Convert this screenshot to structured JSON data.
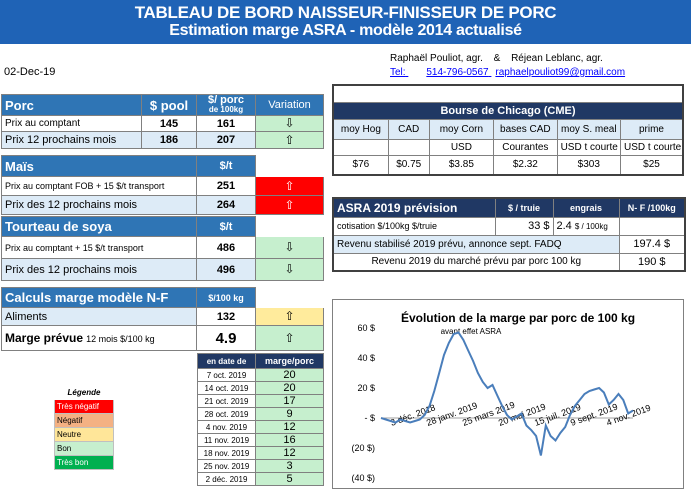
{
  "header": {
    "title": "TABLEAU DE BORD NAISSEUR-FINISSEUR DE PORC",
    "subtitle": "Estimation marge ASRA - modèle 2014 actualisé",
    "authors": "Raphaël Pouliot, agr.",
    "and": "&",
    "author2": "Réjean Leblanc, agr.",
    "date": "02-Dec-19",
    "tel_label": "Tel:",
    "tel_number": "514-796-0567",
    "email": "raphaelpouliot99@gmail.com"
  },
  "porc": {
    "title": "Porc",
    "col_pool": "$ pool",
    "col_porc": "$/ porc",
    "col_porc_sub": "de 100kg",
    "col_variation": "Variation",
    "rows": [
      {
        "label": "Prix au comptant",
        "pool": "145",
        "porc": "161",
        "arrow": "⇩"
      },
      {
        "label": "Prix 12 prochains mois",
        "pool": "186",
        "porc": "207",
        "arrow": "⇧"
      }
    ]
  },
  "mais": {
    "title": "Maïs",
    "unit": "$/t",
    "rows": [
      {
        "label": "Prix au comptant FOB + 15 $/t transport",
        "value": "251",
        "arrow": "⇧"
      },
      {
        "label": "Prix des 12 prochains mois",
        "value": "264",
        "arrow": "⇧"
      }
    ]
  },
  "soya": {
    "title": "Tourteau de soya",
    "unit": "$/t",
    "rows": [
      {
        "label": "Prix au comptant + 15 $/t transport",
        "value": "486",
        "arrow": "⇩"
      },
      {
        "label": "Prix des 12 prochains mois",
        "value": "496",
        "arrow": "⇩"
      }
    ]
  },
  "calculs": {
    "title": "Calculs marge modèle N-F",
    "unit": "$/100 kg",
    "aliments_label": "Aliments",
    "aliments_value": "132",
    "aliments_arrow": "⇧",
    "marge_label": "Marge prévue",
    "marge_sub": "12 mois $/100 kg",
    "marge_value": "4.9",
    "marge_arrow": "⇧"
  },
  "history": {
    "col_date": "en date de",
    "col_marge": "marge/porc",
    "rows": [
      {
        "date": "7 oct. 2019",
        "value": "20"
      },
      {
        "date": "14 oct. 2019",
        "value": "20"
      },
      {
        "date": "21 oct. 2019",
        "value": "17"
      },
      {
        "date": "28 oct. 2019",
        "value": "9"
      },
      {
        "date": "4 nov. 2019",
        "value": "12"
      },
      {
        "date": "11 nov. 2019",
        "value": "16"
      },
      {
        "date": "18 nov. 2019",
        "value": "12"
      },
      {
        "date": "25 nov. 2019",
        "value": "3"
      },
      {
        "date": "2 déc. 2019",
        "value": "5"
      }
    ]
  },
  "legend": {
    "title": "Légende",
    "items": [
      {
        "label": "Très négatif",
        "color": "#ff0000",
        "text": "#ffffff"
      },
      {
        "label": "Négatif",
        "color": "#f4b183",
        "text": "#000000"
      },
      {
        "label": "Neutre",
        "color": "#ffe699",
        "text": "#000000"
      },
      {
        "label": "Bon",
        "color": "#c6efce",
        "text": "#000000"
      },
      {
        "label": "Très bon",
        "color": "#00b050",
        "text": "#ffffff"
      }
    ]
  },
  "chicago": {
    "title": "Bourse de Chicago (CME)",
    "cols": [
      "moy Hog",
      "CAD",
      "moy Corn",
      "bases CAD",
      "moy S. meal",
      "prime"
    ],
    "units": [
      "",
      "",
      "USD",
      "Courantes",
      "USD t courte",
      "USD t courte"
    ],
    "values": [
      "$76",
      "$0.75",
      "$3.85",
      "$2.32",
      "$303",
      "$25"
    ]
  },
  "asra": {
    "title": "ASRA 2019 prévision",
    "col_truie": "$ / truie",
    "col_engrais": "engrais",
    "col_nf": "N- F /100kg",
    "cotisation_label": "cotisation $/100kg $/truie",
    "cotisation_truie": "33 $",
    "cotisation_engrais": "2.4",
    "cotisation_engrais_unit": "$ / 100kg",
    "revenu_stab_label": "Revenu stabilisé 2019 prévu, annonce sept. FADQ",
    "revenu_stab_value": "197.4 $",
    "revenu_marche_label": "Revenu 2019 du marché prévu par porc 100 kg",
    "revenu_marche_value": "190 $"
  },
  "chart_data": {
    "type": "line",
    "title": "Évolution de la marge par porc de 100 kg",
    "annotation": "avant effet ASRA",
    "yticks": [
      "60 $",
      "40 $",
      "20 $",
      "- $",
      "(20 $)",
      "(40 $)"
    ],
    "ytick_values": [
      60,
      40,
      20,
      0,
      -20,
      -40
    ],
    "ylim": [
      -40,
      60
    ],
    "xticks": [
      "3 déc. 2018",
      "28 janv. 2019",
      "25 mars 2019",
      "20 mai 2019",
      "15 juil. 2019",
      "9 sept. 2019",
      "4 nov. 2019"
    ],
    "series": [
      {
        "color": "#4a7ebb",
        "values": [
          0,
          -1,
          -2,
          -3,
          -1,
          -2,
          -3,
          -2,
          -1,
          2,
          8,
          18,
          30,
          42,
          50,
          56,
          57,
          52,
          45,
          38,
          30,
          24,
          20,
          22,
          15,
          8,
          2,
          -1,
          1,
          3,
          -5,
          -8,
          -12,
          -25,
          -5,
          -12,
          -15,
          -10,
          -6,
          2,
          8,
          12,
          16,
          18,
          19,
          20,
          17,
          9,
          12,
          16,
          12,
          3,
          5
        ]
      }
    ],
    "color": "#4a7ebb"
  }
}
